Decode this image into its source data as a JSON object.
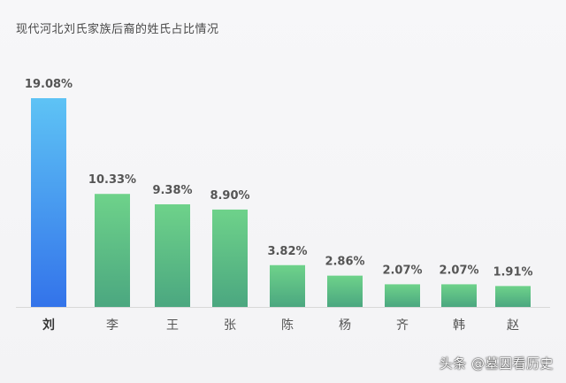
{
  "chart_data": {
    "type": "bar",
    "title": "现代河北刘氏家族后裔的姓氏占比情况",
    "categories": [
      "刘",
      "李",
      "王",
      "张",
      "陈",
      "杨",
      "齐",
      "韩",
      "赵"
    ],
    "values": [
      19.08,
      10.33,
      9.38,
      8.9,
      3.82,
      2.86,
      2.07,
      2.07,
      1.91
    ],
    "value_labels": [
      "19.08%",
      "10.33%",
      "9.38%",
      "8.90%",
      "3.82%",
      "2.86%",
      "2.07%",
      "2.07%",
      "1.91%"
    ],
    "ylim": [
      0,
      19.08
    ],
    "grid": false,
    "legend": "none",
    "colors": {
      "highlight_top": "#5ec3f5",
      "highlight_bottom": "#3373ea",
      "normal_top": "#6ed28a",
      "normal_bottom": "#4ba780",
      "axis": "#d8d8d8",
      "label_text": "#555555",
      "highlight_label": "#333333"
    }
  },
  "watermark": "头条 @墓因看历史"
}
